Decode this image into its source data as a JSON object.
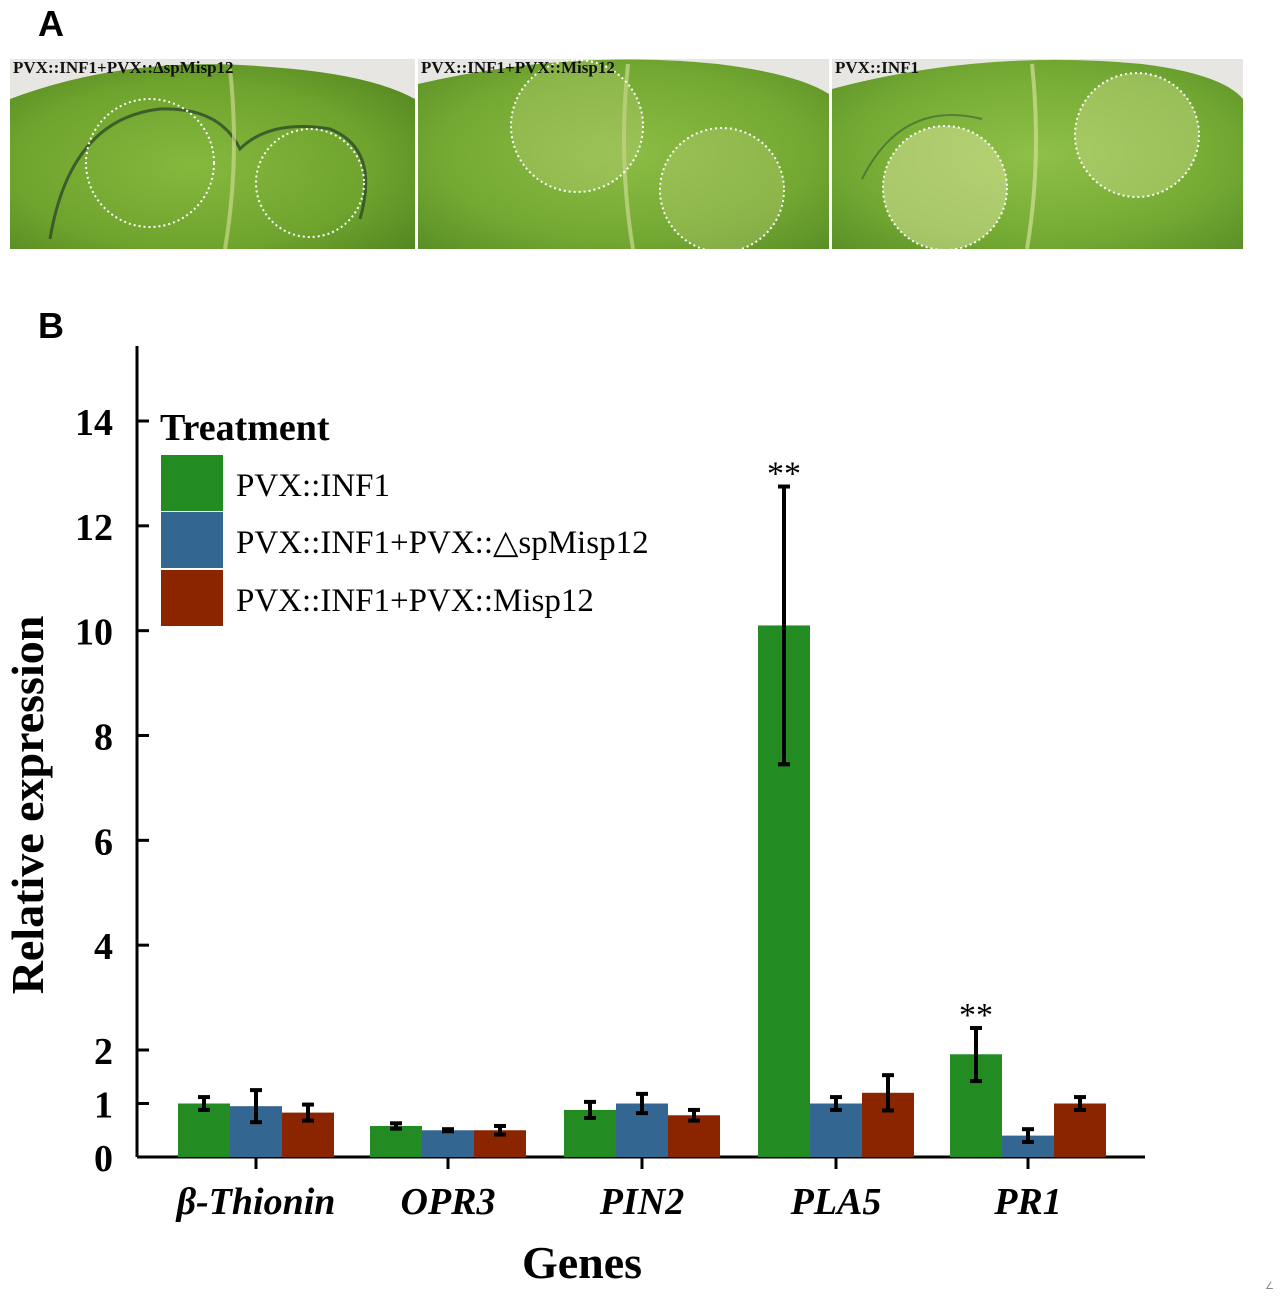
{
  "panel_a": {
    "letter": "A",
    "leaves": [
      {
        "label": "PVX::INF1+PVX::ΔspMisp12"
      },
      {
        "label": "PVX::INF1+PVX::Misp12"
      },
      {
        "label": "PVX::INF1"
      }
    ]
  },
  "panel_b": {
    "letter": "B"
  },
  "stray_mark": "∠",
  "chart_data": {
    "type": "bar",
    "xlabel": "Genes",
    "ylabel": "Relative expression",
    "yticks": [
      0,
      1,
      2,
      4,
      6,
      8,
      10,
      12,
      14
    ],
    "ylim": [
      0,
      15.2
    ],
    "categories": [
      "β-Thionin",
      "OPR3",
      "PIN2",
      "PLA5",
      "PR1"
    ],
    "legend": {
      "title": "Treatment",
      "placement": "top-left"
    },
    "series": [
      {
        "name": "PVX::INF1",
        "color": "#228B22",
        "values": [
          1.0,
          0.58,
          0.88,
          10.1,
          1.92
        ],
        "errors": [
          0.12,
          0.05,
          0.15,
          2.65,
          0.5
        ]
      },
      {
        "name": "PVX::INF1+PVX::△spMisp12",
        "color": "#336791",
        "values": [
          0.95,
          0.5,
          1.0,
          1.0,
          0.4
        ],
        "errors": [
          0.3,
          0.02,
          0.18,
          0.12,
          0.12
        ]
      },
      {
        "name": "PVX::INF1+PVX::Misp12",
        "color": "#8B2500",
        "values": [
          0.83,
          0.5,
          0.78,
          1.2,
          1.0
        ],
        "errors": [
          0.15,
          0.08,
          0.1,
          0.33,
          0.12
        ]
      }
    ],
    "annotations": [
      {
        "category": "PLA5",
        "series": 0,
        "text": "**"
      },
      {
        "category": "PR1",
        "series": 0,
        "text": "**"
      }
    ]
  }
}
